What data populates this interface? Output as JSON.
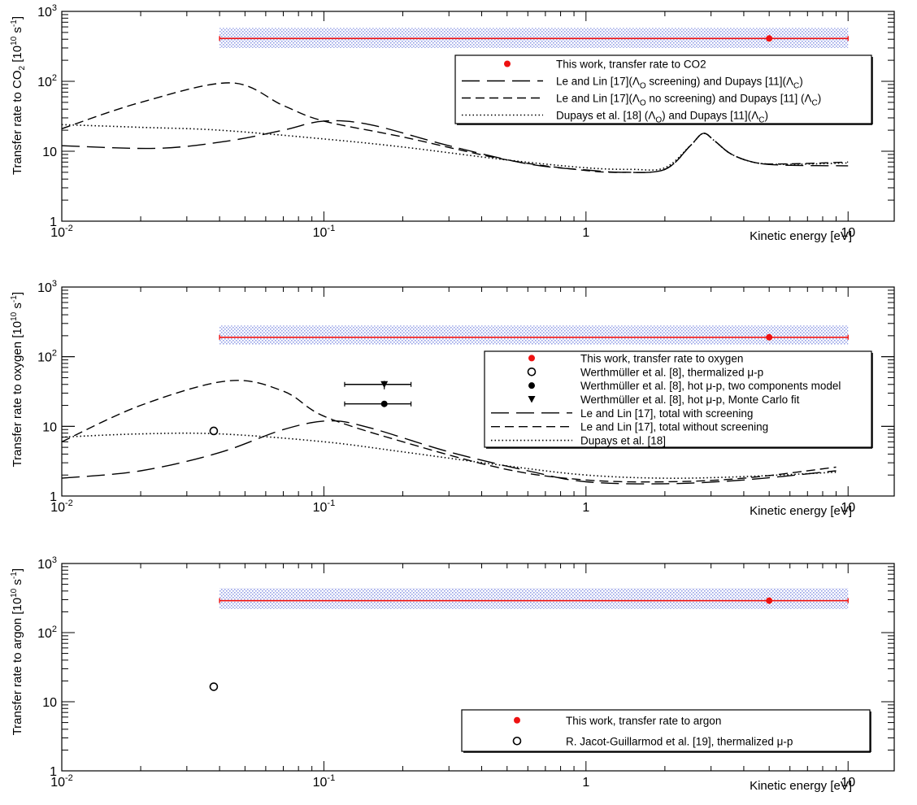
{
  "chart_data": [
    {
      "type": "line",
      "xlabel": "Kinetic energy [eV]",
      "ylabel": {
        "pre": "Transfer rate to CO",
        "sub": "2",
        "mid": " [10",
        "sup": "10",
        "post": " s",
        "sup2": "-1",
        "end": "]"
      },
      "xscale": "log",
      "yscale": "log",
      "xlim": [
        0.01,
        15
      ],
      "ylim": [
        1,
        1000
      ],
      "x_ticks": [
        {
          "base": "10",
          "exp": "-2"
        },
        {
          "base": "10",
          "exp": "-1"
        },
        {
          "base": "1",
          "exp": ""
        },
        {
          "base": "10",
          "exp": ""
        }
      ],
      "y_ticks": [
        {
          "base": "1",
          "exp": ""
        },
        {
          "base": "10",
          "exp": ""
        },
        {
          "base": "10",
          "exp": "2"
        },
        {
          "base": "10",
          "exp": "3"
        }
      ],
      "legend_position": "top-right",
      "band": {
        "x": [
          0.04,
          10
        ],
        "y": [
          300,
          580
        ],
        "value": 410,
        "color": "#3a4fd0"
      },
      "points": [
        {
          "x": 5,
          "y": 410,
          "marker": "filled-circle",
          "color": "#ee1111"
        }
      ],
      "series": [
        {
          "style": "long-dash",
          "x": [
            0.01,
            0.023,
            0.043,
            0.07,
            0.1,
            0.15,
            0.3,
            0.6,
            1.0,
            1.4,
            2.0,
            2.5,
            2.8,
            3.1,
            3.6,
            4.5,
            6,
            10
          ],
          "y": [
            12,
            11,
            14,
            20,
            27,
            24,
            12,
            6.6,
            5.4,
            5.0,
            5.5,
            12,
            18,
            14,
            9,
            6.8,
            6.3,
            6.2
          ]
        },
        {
          "style": "short-dash",
          "x": [
            0.01,
            0.02,
            0.044,
            0.07,
            0.1,
            0.2,
            0.5,
            1.0,
            1.4,
            2.0,
            2.5,
            2.8,
            3.1,
            3.6,
            4.5,
            6,
            10
          ],
          "y": [
            21,
            50,
            95,
            45,
            27,
            16,
            7.5,
            5.3,
            5.0,
            5.5,
            12,
            18,
            14,
            9,
            6.8,
            6.6,
            7.0
          ]
        },
        {
          "style": "dotted",
          "x": [
            0.01,
            0.02,
            0.04,
            0.1,
            0.2,
            0.5,
            1.0,
            1.5,
            2.0,
            2.5,
            2.8,
            3.1,
            3.6,
            4.5,
            6,
            10
          ],
          "y": [
            24,
            22,
            20,
            15,
            11.5,
            7.5,
            5.8,
            5.5,
            5.8,
            12,
            18,
            14,
            9,
            6.8,
            6.5,
            6.8
          ]
        }
      ],
      "legend": [
        {
          "marker": "filled-circle",
          "color": "#ee1111",
          "label": "This work, transfer rate to CO2"
        },
        {
          "marker": "long-dash",
          "label": "Le and Lin [17](ΛO screening) and Dupays [11](ΛC)"
        },
        {
          "marker": "short-dash",
          "label": "Le and Lin [17](ΛO no screening) and Dupays [11] (ΛC)"
        },
        {
          "marker": "dotted",
          "label": "Dupays et al. [18] (ΛO) and Dupays [11](ΛC)"
        }
      ]
    },
    {
      "type": "line",
      "xlabel": "Kinetic energy [eV]",
      "ylabel": {
        "pre": "Transfer rate to oxygen",
        "sub": "",
        "mid": " [10",
        "sup": "10",
        "post": " s",
        "sup2": "-1",
        "end": "]"
      },
      "xscale": "log",
      "yscale": "log",
      "xlim": [
        0.01,
        15
      ],
      "ylim": [
        1,
        1000
      ],
      "x_ticks": [
        {
          "base": "10",
          "exp": "-2"
        },
        {
          "base": "10",
          "exp": "-1"
        },
        {
          "base": "1",
          "exp": ""
        },
        {
          "base": "10",
          "exp": ""
        }
      ],
      "y_ticks": [
        {
          "base": "1",
          "exp": ""
        },
        {
          "base": "10",
          "exp": ""
        },
        {
          "base": "10",
          "exp": "2"
        },
        {
          "base": "10",
          "exp": "3"
        }
      ],
      "legend_position": "right",
      "band": {
        "x": [
          0.04,
          10
        ],
        "y": [
          150,
          280
        ],
        "value": 190,
        "color": "#3a4fd0"
      },
      "points": [
        {
          "x": 5,
          "y": 190,
          "marker": "filled-circle",
          "color": "#ee1111"
        },
        {
          "x": 0.038,
          "y": 8.6,
          "marker": "open-circle",
          "color": "#000000"
        },
        {
          "x": 0.17,
          "y": 21,
          "marker": "filled-circle",
          "color": "#000000",
          "xerr": [
            0.12,
            0.215
          ]
        },
        {
          "x": 0.17,
          "y": 40,
          "marker": "triangle-down",
          "color": "#000000",
          "xerr": [
            0.12,
            0.215
          ],
          "yerr": [
            34,
            45
          ]
        }
      ],
      "series": [
        {
          "style": "long-dash",
          "x": [
            0.01,
            0.02,
            0.04,
            0.07,
            0.105,
            0.15,
            0.3,
            0.6,
            1.0,
            2.0,
            4.0,
            9.0
          ],
          "y": [
            1.8,
            2.3,
            4.2,
            9,
            12,
            9.5,
            4.3,
            2.3,
            1.6,
            1.5,
            1.7,
            2.3
          ]
        },
        {
          "style": "short-dash",
          "x": [
            0.01,
            0.02,
            0.043,
            0.07,
            0.1,
            0.2,
            0.5,
            1.0,
            2.0,
            4.0,
            9.0
          ],
          "y": [
            6,
            20,
            45,
            32,
            14,
            6,
            2.4,
            1.7,
            1.6,
            1.8,
            2.6
          ]
        },
        {
          "style": "dotted",
          "x": [
            0.01,
            0.02,
            0.04,
            0.1,
            0.2,
            0.5,
            1.0,
            2.0,
            4.0,
            9.0
          ],
          "y": [
            7,
            7.8,
            7.8,
            6,
            4.3,
            2.7,
            2.0,
            1.8,
            1.9,
            2.2
          ]
        }
      ],
      "legend": [
        {
          "marker": "filled-circle",
          "color": "#ee1111",
          "label": "This work, transfer rate to oxygen"
        },
        {
          "marker": "open-circle",
          "label": "Werthmüller et al. [8], thermalized μ-p"
        },
        {
          "marker": "filled-circle",
          "color": "#000000",
          "label": "Werthmüller et al. [8], hot μ-p, two components model"
        },
        {
          "marker": "triangle-down",
          "label": "Werthmüller et al. [8], hot μ-p, Monte Carlo fit"
        },
        {
          "marker": "long-dash",
          "label": "Le and Lin [17], total with screening"
        },
        {
          "marker": "short-dash",
          "label": "Le and Lin [17], total without screening"
        },
        {
          "marker": "dotted",
          "label": "Dupays et al. [18]"
        }
      ]
    },
    {
      "type": "scatter",
      "xlabel": "Kinetic energy [eV]",
      "ylabel": {
        "pre": "Transfer rate to argon",
        "sub": "",
        "mid": " [10",
        "sup": "10",
        "post": " s",
        "sup2": "-1",
        "end": "]"
      },
      "xscale": "log",
      "yscale": "log",
      "xlim": [
        0.01,
        15
      ],
      "ylim": [
        1,
        1000
      ],
      "x_ticks": [
        {
          "base": "10",
          "exp": "-2"
        },
        {
          "base": "10",
          "exp": "-1"
        },
        {
          "base": "1",
          "exp": ""
        },
        {
          "base": "10",
          "exp": ""
        }
      ],
      "y_ticks": [
        {
          "base": "1",
          "exp": ""
        },
        {
          "base": "10",
          "exp": ""
        },
        {
          "base": "10",
          "exp": "2"
        },
        {
          "base": "10",
          "exp": "3"
        }
      ],
      "legend_position": "bottom-right",
      "band": {
        "x": [
          0.04,
          10
        ],
        "y": [
          220,
          440
        ],
        "value": 290,
        "color": "#3a4fd0"
      },
      "points": [
        {
          "x": 5,
          "y": 290,
          "marker": "filled-circle",
          "color": "#ee1111"
        },
        {
          "x": 0.038,
          "y": 16.5,
          "marker": "open-circle",
          "color": "#000000"
        }
      ],
      "series": [],
      "legend": [
        {
          "marker": "filled-circle",
          "color": "#ee1111",
          "label": "This work, transfer rate to argon"
        },
        {
          "marker": "open-circle",
          "label": "R. Jacot-Guillarmod et al. [19], thermalized μ-p"
        }
      ]
    }
  ]
}
